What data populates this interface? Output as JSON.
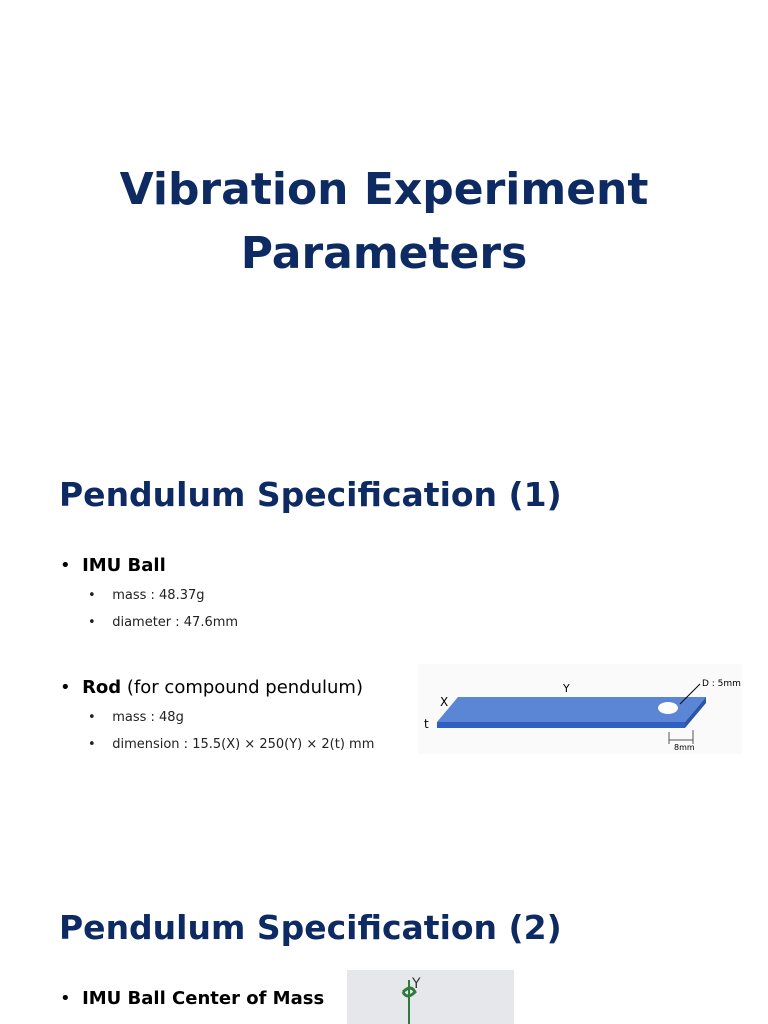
{
  "slide1": {
    "title": "Vibration Experiment Parameters"
  },
  "slide2": {
    "heading": "Pendulum Specification (1)",
    "items": [
      {
        "label": "IMU Ball",
        "subitems": [
          "mass : 48.37g",
          "diameter : 47.6mm"
        ]
      },
      {
        "label": "Rod",
        "note": "(for compound pendulum)",
        "subitems": [
          "mass : 48g",
          "dimension : 15.5(X) × 250(Y) × 2(t) mm"
        ]
      }
    ],
    "figure": {
      "x_label": "X",
      "y_label": "Y",
      "t_label": "t",
      "hole_label": "D : 5mm",
      "offset_label": "8mm"
    }
  },
  "slide3": {
    "heading": "Pendulum Specification (2)",
    "items": [
      {
        "label": "IMU Ball Center of Mass"
      }
    ],
    "figure": {
      "axis_label": "Y"
    }
  }
}
